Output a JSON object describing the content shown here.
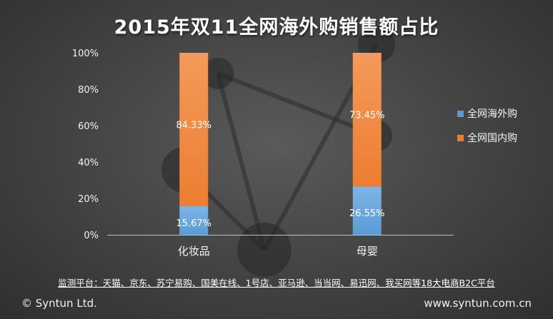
{
  "chart_data": {
    "type": "bar",
    "stacked": true,
    "title": "2015年双11全网海外购销售额占比",
    "categories": [
      "化妆品",
      "母婴"
    ],
    "series": [
      {
        "name": "全网海外购",
        "values": [
          15.67,
          26.55
        ],
        "labels": [
          "15.67%",
          "26.55%"
        ],
        "color": "#5b9bd5"
      },
      {
        "name": "全网国内购",
        "values": [
          84.33,
          73.45
        ],
        "labels": [
          "84.33%",
          "73.45%"
        ],
        "color": "#ed7d31"
      }
    ],
    "ylim": [
      0,
      100
    ],
    "yticks": [
      "0%",
      "20%",
      "40%",
      "60%",
      "80%",
      "100%"
    ],
    "grid": false,
    "legend": "right"
  },
  "source_note": "监测平台：天猫、京东、苏宁易购、国美在线、1号店、亚马逊、当当网、易迅网、我买网等18大电商B2C平台",
  "footer": {
    "copyright": "© Syntun Ltd.",
    "website": "www.syntun.com.cn"
  }
}
